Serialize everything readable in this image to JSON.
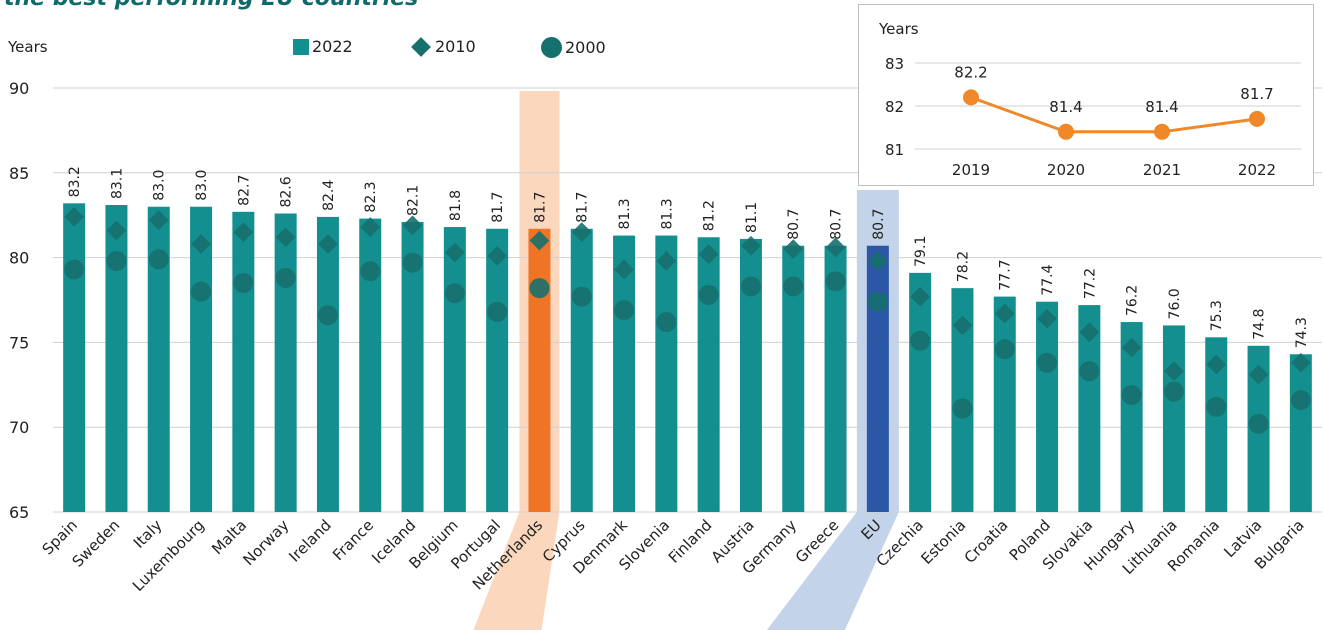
{
  "title": "the best performing EU countries",
  "colors": {
    "bar": "#148f8f",
    "marker": "#16706e",
    "highlight_nl": "#f07425",
    "highlight_nl_band": "#fbd8bd",
    "highlight_eu": "#2c57a6",
    "highlight_eu_band": "#c2d3ea",
    "inset_line": "#f0882a",
    "grid": "#d0d0d0"
  },
  "legend": {
    "items": [
      {
        "label": "2022",
        "shape": "square"
      },
      {
        "label": "2010",
        "shape": "diamond"
      },
      {
        "label": "2000",
        "shape": "circle"
      }
    ]
  },
  "chart_data": [
    {
      "type": "bar",
      "ylabel": "Years",
      "ylim": [
        65,
        90
      ],
      "yticks": [
        65,
        70,
        75,
        80,
        85,
        90
      ],
      "grid": true,
      "legend_position": "top",
      "categories": [
        "Spain",
        "Sweden",
        "Italy",
        "Luxembourg",
        "Malta",
        "Norway",
        "Ireland",
        "France",
        "Iceland",
        "Belgium",
        "Portugal",
        "Netherlands",
        "Cyprus",
        "Denmark",
        "Slovenia",
        "Finland",
        "Austria",
        "Germany",
        "Greece",
        "EU",
        "Czechia",
        "Estonia",
        "Croatia",
        "Poland",
        "Slovakia",
        "Hungary",
        "Lithuania",
        "Romania",
        "Latvia",
        "Bulgaria"
      ],
      "highlighted": [
        "Netherlands",
        "EU"
      ],
      "series": [
        {
          "name": "2022",
          "marker": "bar",
          "values": [
            83.2,
            83.1,
            83.0,
            83.0,
            82.7,
            82.6,
            82.4,
            82.3,
            82.1,
            81.8,
            81.7,
            81.7,
            81.7,
            81.3,
            81.3,
            81.2,
            81.1,
            80.7,
            80.7,
            80.7,
            79.1,
            78.2,
            77.7,
            77.4,
            77.2,
            76.2,
            76.0,
            75.3,
            74.8,
            74.3
          ],
          "labels": [
            "83.2",
            "83.1",
            "83.0",
            "83.0",
            "82.7",
            "82.6",
            "82.4",
            "82.3",
            "82.1",
            "81.8",
            "81.7",
            "81.7",
            "81.7",
            "81.3",
            "81.3",
            "81.2",
            "81.1",
            "80.7",
            "80.7",
            "80.7",
            "79.1",
            "78.2",
            "77.7",
            "77.4",
            "77.2",
            "76.2",
            "76.0",
            "75.3",
            "74.8",
            "74.3"
          ]
        },
        {
          "name": "2010",
          "marker": "diamond",
          "values": [
            82.4,
            81.6,
            82.2,
            80.8,
            81.5,
            81.2,
            80.8,
            81.8,
            81.9,
            80.3,
            80.1,
            81.0,
            81.5,
            79.3,
            79.8,
            80.2,
            80.7,
            80.5,
            80.6,
            79.8,
            77.7,
            76.0,
            76.7,
            76.4,
            75.6,
            74.7,
            73.3,
            73.7,
            73.1,
            73.8
          ]
        },
        {
          "name": "2000",
          "marker": "circle",
          "values": [
            79.3,
            79.8,
            79.9,
            78.0,
            78.5,
            78.8,
            76.6,
            79.2,
            79.7,
            77.9,
            76.8,
            78.2,
            77.7,
            76.9,
            76.2,
            77.8,
            78.3,
            78.3,
            78.6,
            77.4,
            75.1,
            71.1,
            74.6,
            73.8,
            73.3,
            71.9,
            72.1,
            71.2,
            70.2,
            71.6
          ]
        }
      ]
    },
    {
      "type": "line",
      "ylabel": "Years",
      "ylim": [
        81,
        83
      ],
      "yticks": [
        81,
        82,
        83
      ],
      "grid": true,
      "x": [
        "2019",
        "2020",
        "2021",
        "2022"
      ],
      "series": [
        {
          "values": [
            82.2,
            81.4,
            81.4,
            81.7
          ],
          "labels": [
            "82.2",
            "81.4",
            "81.4",
            "81.7"
          ]
        }
      ]
    }
  ]
}
